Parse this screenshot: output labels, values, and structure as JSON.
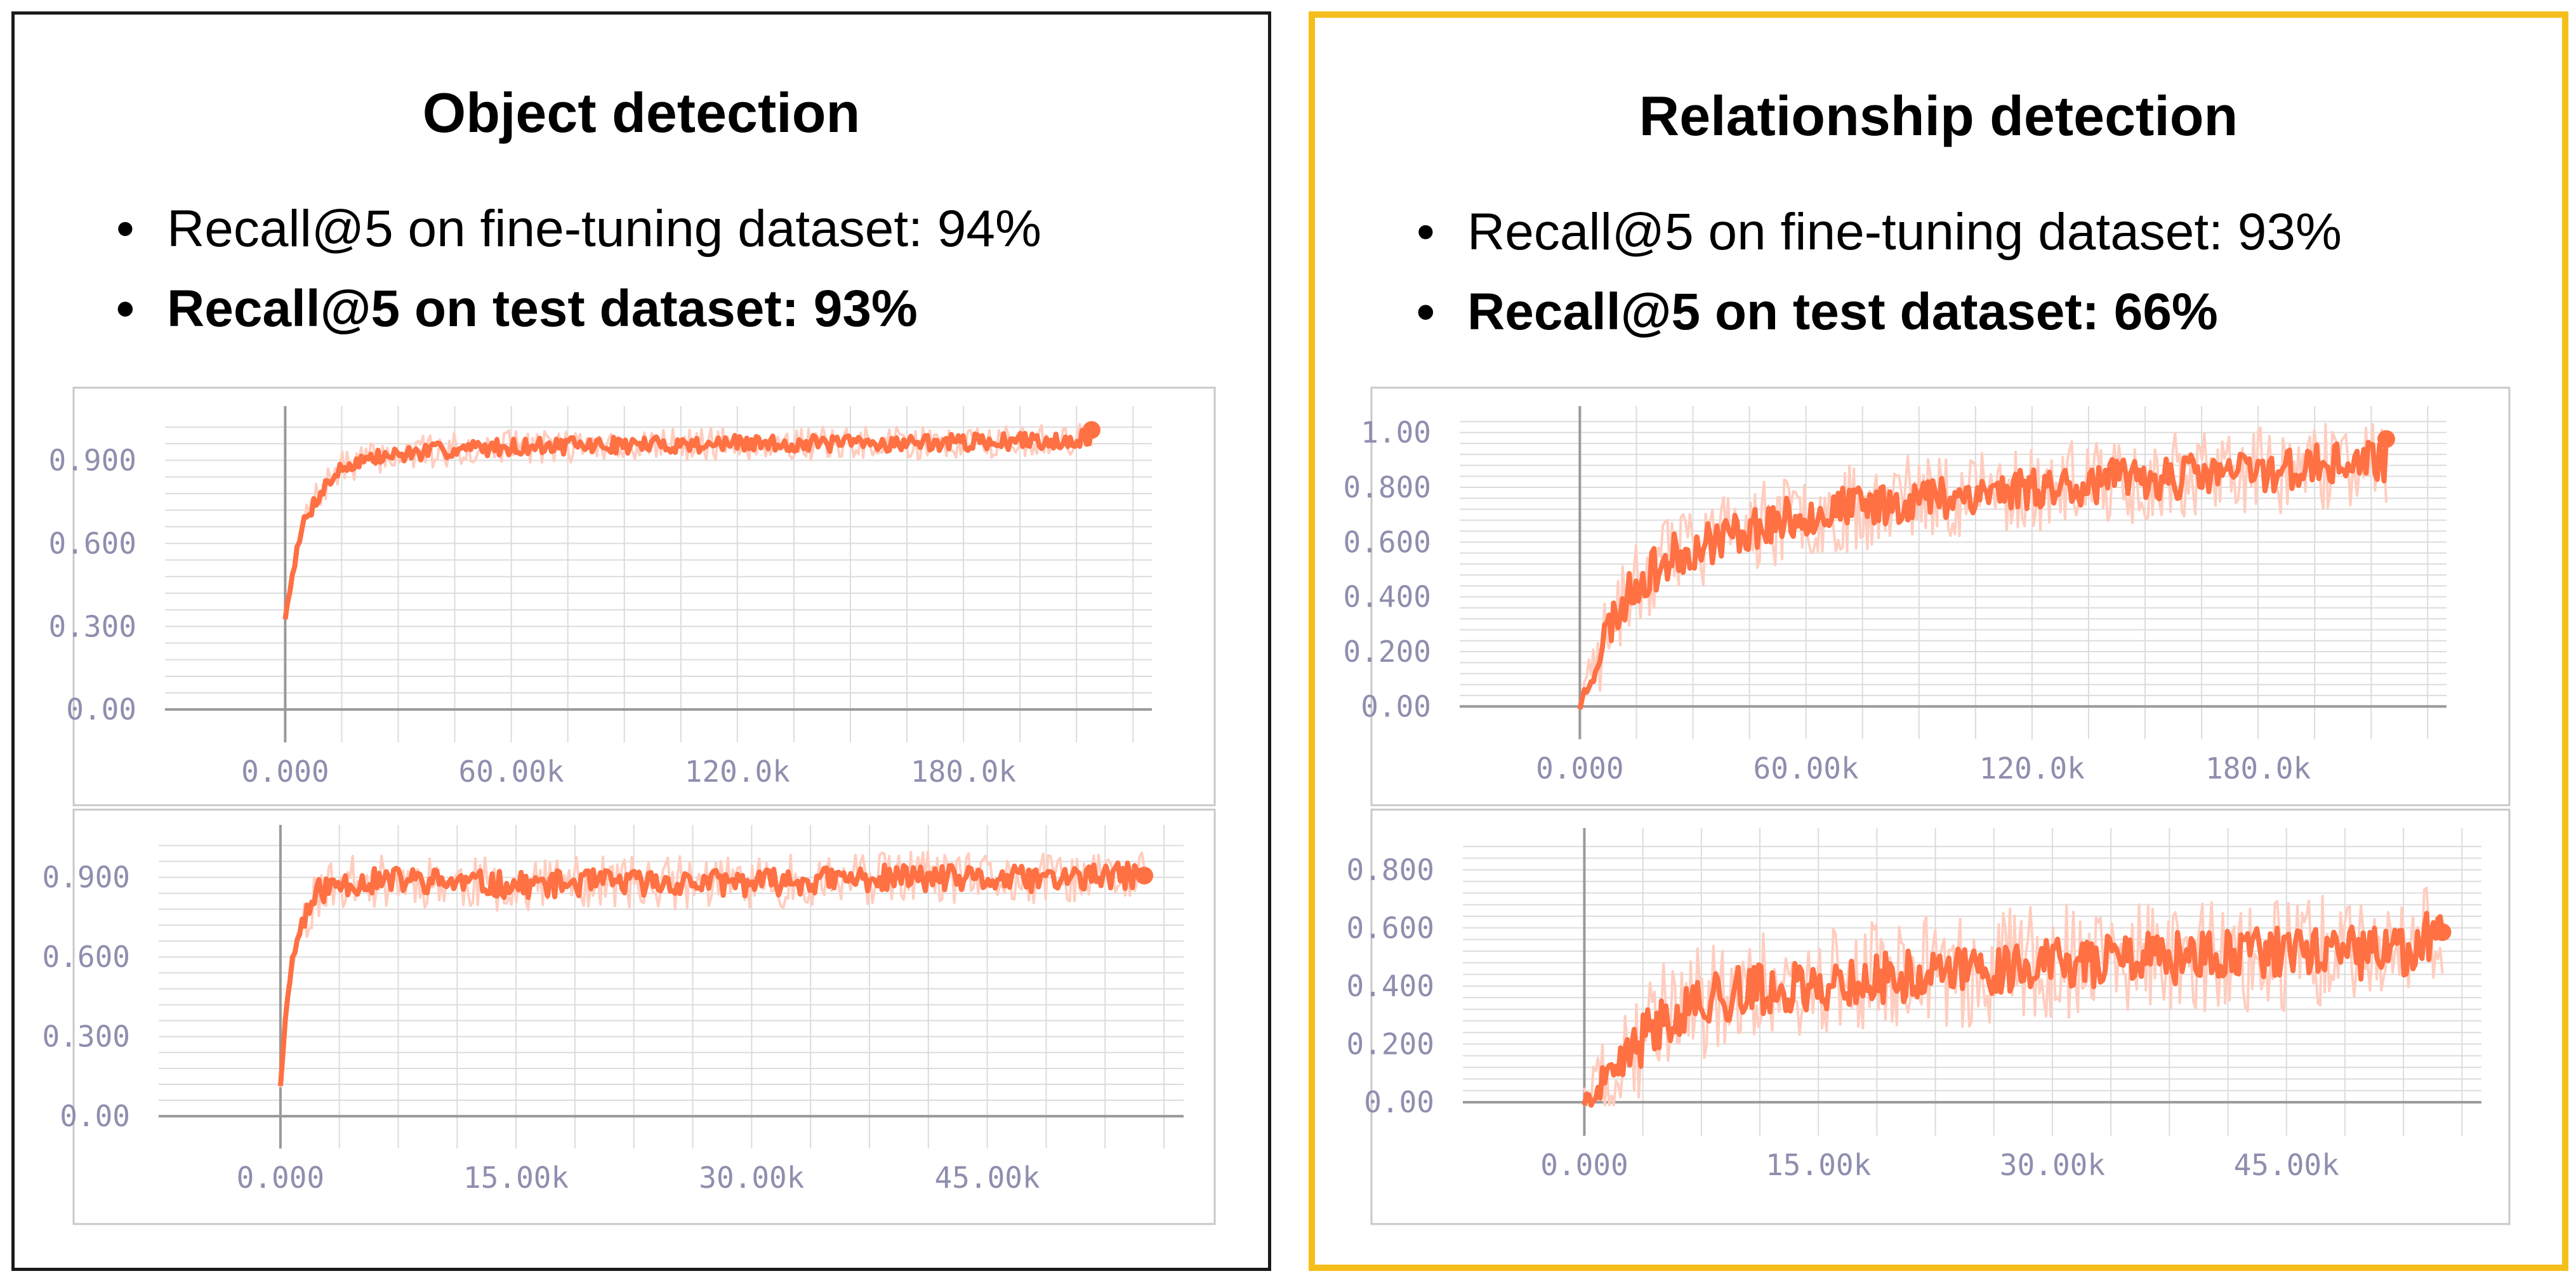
{
  "panels": [
    {
      "title": "Object detection",
      "bullets": [
        {
          "dot": "•",
          "text": "Recall@5 on fine-tuning dataset: 94%"
        },
        {
          "dot": "•",
          "text": "Recall@5 on test dataset: 93%"
        }
      ]
    },
    {
      "title": "Relationship detection",
      "bullets": [
        {
          "dot": "•",
          "text": "Recall@5 on fine-tuning dataset: 93%"
        },
        {
          "dot": "•",
          "text": "Recall@5 on test dataset: 66%"
        }
      ]
    }
  ],
  "colors": {
    "line": "#ff7043",
    "line_light": "#ffcdbf",
    "tick": "#8e8eae",
    "grid": "#dcdcdc",
    "axis": "#999999",
    "frame": "#c8c8c8"
  },
  "chart_data": [
    {
      "type": "line",
      "panel": "Object detection",
      "xlim": [
        -10000,
        230000
      ],
      "ylim": [
        -0.05,
        1.05
      ],
      "xticks": [
        0,
        60000,
        120000,
        180000
      ],
      "xtick_labels": [
        "0.000",
        "60.00k",
        "120.0k",
        "180.0k"
      ],
      "yticks": [
        0,
        0.3,
        0.6,
        0.9
      ],
      "ytick_labels": [
        "0.00",
        "0.300",
        "0.600",
        "0.900"
      ],
      "smoothed": {
        "x": [
          0,
          2000,
          5000,
          10000,
          15000,
          20000,
          30000,
          45000,
          60000,
          90000,
          120000,
          150000,
          180000,
          200000,
          214000
        ],
        "y": [
          0.33,
          0.5,
          0.68,
          0.8,
          0.87,
          0.9,
          0.92,
          0.94,
          0.95,
          0.955,
          0.96,
          0.96,
          0.965,
          0.97,
          0.98
        ]
      },
      "noise": 0.03,
      "raw_noise": 0.06,
      "points": 340,
      "seed": 7
    },
    {
      "type": "line",
      "panel": "Object detection",
      "xlim": [
        -2500,
        57500
      ],
      "ylim": [
        -0.05,
        1.05
      ],
      "xticks": [
        0,
        15000,
        30000,
        45000
      ],
      "xtick_labels": [
        "0.000",
        "15.00k",
        "30.00k",
        "45.00k"
      ],
      "yticks": [
        0,
        0.3,
        0.6,
        0.9
      ],
      "ytick_labels": [
        "0.00",
        "0.300",
        "0.600",
        "0.900"
      ],
      "smoothed": {
        "x": [
          0,
          500,
          1000,
          1500,
          2500,
          4000,
          8000,
          15000,
          20000,
          30000,
          40000,
          45000,
          52000,
          55000
        ],
        "y": [
          0.12,
          0.5,
          0.65,
          0.75,
          0.85,
          0.88,
          0.89,
          0.87,
          0.88,
          0.88,
          0.9,
          0.89,
          0.9,
          0.91
        ]
      },
      "noise": 0.05,
      "raw_noise": 0.1,
      "points": 360,
      "seed": 11
    },
    {
      "type": "line",
      "panel": "Relationship detection",
      "xlim": [
        -10000,
        230000
      ],
      "ylim": [
        -0.05,
        1.05
      ],
      "xticks": [
        0,
        60000,
        120000,
        180000
      ],
      "xtick_labels": [
        "0.000",
        "60.00k",
        "120.0k",
        "180.0k"
      ],
      "yticks": [
        0,
        0.2,
        0.4,
        0.6,
        0.8,
        1.0
      ],
      "ytick_labels": [
        "0.00",
        "0.200",
        "0.400",
        "0.600",
        "0.800",
        "1.00"
      ],
      "smoothed": {
        "x": [
          0,
          3000,
          8000,
          15000,
          25000,
          40000,
          60000,
          90000,
          120000,
          150000,
          180000,
          200000,
          214000
        ],
        "y": [
          0.0,
          0.12,
          0.3,
          0.45,
          0.55,
          0.63,
          0.7,
          0.76,
          0.8,
          0.83,
          0.86,
          0.88,
          0.9
        ]
      },
      "noise": 0.08,
      "raw_noise": 0.16,
      "points": 360,
      "seed": 23
    },
    {
      "type": "line",
      "panel": "Relationship detection",
      "xlim": [
        -2500,
        57500
      ],
      "ylim": [
        -0.05,
        0.9
      ],
      "xticks": [
        0,
        15000,
        30000,
        45000
      ],
      "xtick_labels": [
        "0.000",
        "15.00k",
        "30.00k",
        "45.00k"
      ],
      "yticks": [
        0,
        0.2,
        0.4,
        0.6,
        0.8
      ],
      "ytick_labels": [
        "0.00",
        "0.200",
        "0.400",
        "0.600",
        "0.800"
      ],
      "smoothed": {
        "x": [
          0,
          1500,
          3000,
          6000,
          10000,
          15000,
          20000,
          30000,
          40000,
          48000,
          53000,
          55000
        ],
        "y": [
          0.0,
          0.05,
          0.18,
          0.32,
          0.38,
          0.4,
          0.43,
          0.48,
          0.5,
          0.52,
          0.5,
          0.64
        ]
      },
      "noise": 0.09,
      "raw_noise": 0.2,
      "points": 380,
      "seed": 41
    }
  ]
}
